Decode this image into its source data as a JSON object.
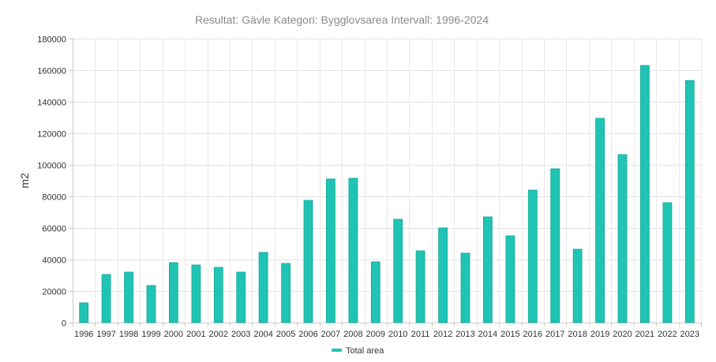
{
  "chart_data": {
    "type": "bar",
    "title": "Resultat: Gävle Kategori: Bygglovsarea Intervall: 1996-2024",
    "xlabel": "",
    "ylabel": "m2",
    "ylim": [
      0,
      180000
    ],
    "yticks": [
      0,
      20000,
      40000,
      60000,
      80000,
      100000,
      120000,
      140000,
      160000,
      180000
    ],
    "categories": [
      "1996",
      "1997",
      "1998",
      "1999",
      "2000",
      "2001",
      "2002",
      "2003",
      "2004",
      "2005",
      "2006",
      "2007",
      "2008",
      "2009",
      "2010",
      "2011",
      "2012",
      "2013",
      "2014",
      "2015",
      "2016",
      "2017",
      "2018",
      "2019",
      "2020",
      "2021",
      "2022",
      "2023"
    ],
    "series": [
      {
        "name": "Total area",
        "color": "#20c4b4",
        "values": [
          12500,
          30500,
          32000,
          23500,
          38000,
          36500,
          35000,
          32000,
          44500,
          37500,
          77500,
          91000,
          91500,
          38500,
          65500,
          45500,
          60000,
          44000,
          67000,
          55000,
          84000,
          97500,
          46500,
          129500,
          106500,
          163000,
          76000,
          153500
        ]
      }
    ],
    "grid": true,
    "legend_position": "bottom-center"
  }
}
